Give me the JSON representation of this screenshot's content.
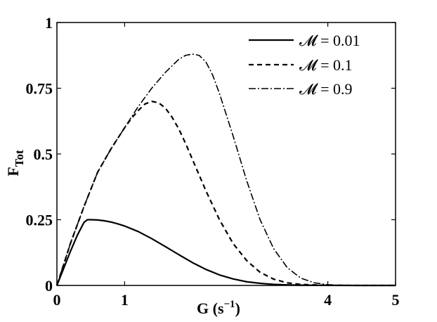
{
  "chart_data": {
    "type": "line",
    "xlabel": "G (s",
    "xlabel_sup": "−1",
    "xlabel_close": ")",
    "ylabel": "F",
    "ylabel_sub": "Tot",
    "xlim": [
      0,
      5
    ],
    "ylim": [
      0,
      1
    ],
    "xticks": [
      0,
      1,
      4,
      5
    ],
    "xtick_labels": [
      "0",
      "1",
      "4",
      "5"
    ],
    "yticks": [
      0,
      0.25,
      0.5,
      0.75,
      1
    ],
    "ytick_labels": [
      "0",
      "0.25",
      "0.5",
      "0.75",
      "1"
    ],
    "grid": false,
    "legend_position": "top-right",
    "series": [
      {
        "name": "𝓜 = 0.01",
        "style": "solid",
        "x": [
          0,
          0.1,
          0.2,
          0.3,
          0.4,
          0.45,
          0.5,
          0.6,
          0.7,
          0.8,
          0.9,
          1.0,
          1.2,
          1.4,
          1.6,
          1.8,
          2.0,
          2.2,
          2.4,
          2.6,
          2.8,
          3.0,
          3.2,
          3.4,
          3.6,
          3.8,
          4.0,
          4.5,
          5.0
        ],
        "y": [
          0,
          0.065,
          0.13,
          0.19,
          0.24,
          0.25,
          0.25,
          0.249,
          0.246,
          0.241,
          0.234,
          0.226,
          0.205,
          0.178,
          0.148,
          0.117,
          0.087,
          0.061,
          0.04,
          0.025,
          0.014,
          0.008,
          0.004,
          0.002,
          0.001,
          0.0005,
          0.0002,
          0,
          0
        ]
      },
      {
        "name": "𝓜 = 0.1",
        "style": "dashed",
        "x": [
          0,
          0.2,
          0.4,
          0.6,
          0.8,
          1.0,
          1.1,
          1.2,
          1.3,
          1.4,
          1.5,
          1.6,
          1.7,
          1.8,
          1.9,
          2.0,
          2.2,
          2.4,
          2.6,
          2.8,
          3.0,
          3.2,
          3.4,
          3.6,
          3.8,
          4.0,
          4.5,
          5.0
        ],
        "y": [
          0,
          0.16,
          0.3,
          0.43,
          0.52,
          0.6,
          0.635,
          0.665,
          0.69,
          0.7,
          0.695,
          0.675,
          0.64,
          0.595,
          0.54,
          0.48,
          0.36,
          0.25,
          0.16,
          0.095,
          0.05,
          0.024,
          0.01,
          0.004,
          0.002,
          0.0005,
          0,
          0
        ]
      },
      {
        "name": "𝓜 = 0.9",
        "style": "dashdot",
        "x": [
          0,
          0.2,
          0.4,
          0.6,
          0.8,
          1.0,
          1.2,
          1.4,
          1.6,
          1.7,
          1.8,
          1.9,
          2.0,
          2.1,
          2.2,
          2.3,
          2.4,
          2.6,
          2.8,
          3.0,
          3.2,
          3.4,
          3.6,
          3.8,
          4.0,
          4.2,
          4.5,
          5.0
        ],
        "y": [
          0,
          0.16,
          0.3,
          0.43,
          0.52,
          0.6,
          0.68,
          0.75,
          0.81,
          0.835,
          0.86,
          0.875,
          0.88,
          0.875,
          0.85,
          0.8,
          0.73,
          0.57,
          0.4,
          0.25,
          0.14,
          0.068,
          0.028,
          0.01,
          0.003,
          0.001,
          0,
          0
        ]
      }
    ]
  }
}
